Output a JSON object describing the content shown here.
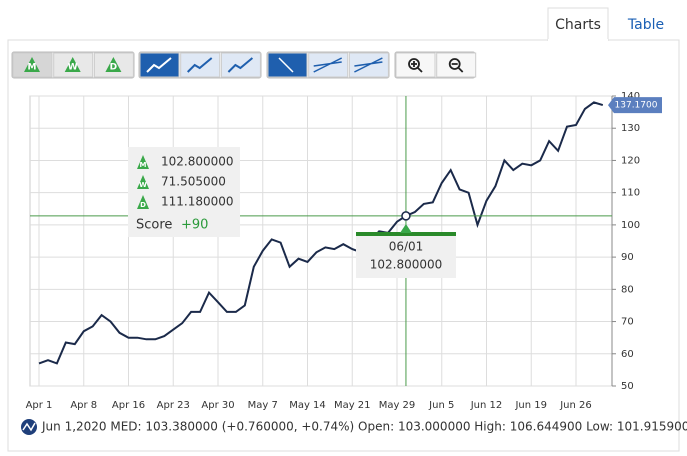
{
  "tabs": [
    "Charts",
    "Table"
  ],
  "toolbar": {
    "period_buttons": [
      "M",
      "W",
      "D"
    ]
  },
  "chart_data": {
    "type": "line",
    "categories": [
      "Apr 1",
      null,
      null,
      null,
      null,
      "Apr 8",
      null,
      null,
      null,
      null,
      "Apr 16",
      null,
      null,
      null,
      null,
      "Apr 23",
      null,
      null,
      null,
      null,
      "Apr 30",
      null,
      null,
      null,
      null,
      "May 7",
      null,
      null,
      null,
      null,
      "May 14",
      null,
      null,
      null,
      null,
      "May 21",
      null,
      null,
      null,
      null,
      "May 29",
      null,
      null,
      null,
      null,
      "Jun 5",
      null,
      null,
      null,
      null,
      "Jun 12",
      null,
      null,
      null,
      null,
      "Jun 19",
      null,
      null,
      null,
      null,
      "Jun 26",
      null,
      null,
      null
    ],
    "values": [
      57,
      58,
      57,
      63.5,
      63,
      67,
      68.5,
      72,
      70,
      66.5,
      65,
      65,
      64.5,
      64.5,
      65.5,
      67.5,
      69.5,
      73,
      73,
      79,
      76,
      73,
      73,
      75,
      87,
      92,
      95.5,
      94.5,
      87,
      89.5,
      88.5,
      91.5,
      93,
      92.5,
      94,
      92.5,
      91.5,
      95,
      98,
      97.5,
      101,
      102.8,
      104,
      106.5,
      107,
      113,
      117,
      111,
      110,
      100,
      107.5,
      112,
      120,
      117,
      119,
      118.5,
      120,
      126,
      123,
      130.5,
      131,
      136,
      138,
      137.17
    ],
    "color": "#1b2a4a",
    "ylim": [
      50,
      140
    ],
    "yticks": [
      50,
      60,
      70,
      80,
      90,
      100,
      110,
      120,
      130,
      140
    ],
    "grid": true,
    "last_price_label": "137.1700",
    "crosshair": {
      "date": "06/01",
      "value": 102.8,
      "value_label": "102.800000"
    },
    "indicators": [
      "102.800000",
      "71.505000",
      "111.180000"
    ],
    "score_label": "Score",
    "score": "+90",
    "status": "Jun 1,2020 MED: 103.380000 (+0.760000, +0.74%) Open: 103.000000 High: 106.644900 Low: 101.915900"
  }
}
